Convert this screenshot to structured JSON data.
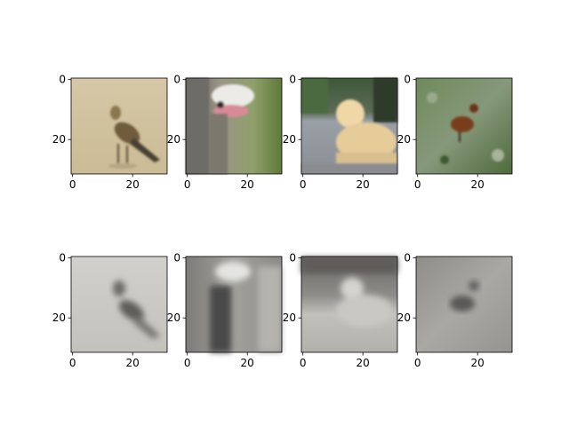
{
  "figure": {
    "background": "#ffffff",
    "axis_color": "#000000"
  },
  "chart_data": [
    {
      "type": "heatmap",
      "content": "image: bird on sandy background (color)",
      "colormap": "rgb",
      "xlim": [
        -0.5,
        31.5
      ],
      "ylim": [
        31.5,
        -0.5
      ],
      "xticks": [
        0,
        20
      ],
      "yticks": [
        0,
        20
      ],
      "dominant_colors": [
        "#d8c9a8",
        "#7a6a4a",
        "#3e3a2c"
      ]
    },
    {
      "type": "heatmap",
      "content": "image: ostrich head close-up (color)",
      "colormap": "rgb",
      "xlim": [
        -0.5,
        31.5
      ],
      "ylim": [
        31.5,
        -0.5
      ],
      "xticks": [
        0,
        20
      ],
      "yticks": [
        0,
        20
      ],
      "dominant_colors": [
        "#8e8a7c",
        "#e4e4e0",
        "#6f8a3e"
      ]
    },
    {
      "type": "heatmap",
      "content": "image: light-colored dog lying on pavement (color)",
      "colormap": "rgb",
      "xlim": [
        -0.5,
        31.5
      ],
      "ylim": [
        31.5,
        -0.5
      ],
      "xticks": [
        0,
        20
      ],
      "yticks": [
        0,
        20
      ],
      "dominant_colors": [
        "#3f5a3a",
        "#9da0a4",
        "#e8cf9e"
      ]
    },
    {
      "type": "heatmap",
      "content": "image: brown bird standing in grass (color)",
      "colormap": "rgb",
      "xlim": [
        -0.5,
        31.5
      ],
      "ylim": [
        31.5,
        -0.5
      ],
      "xticks": [
        0,
        20
      ],
      "yticks": [
        0,
        20
      ],
      "dominant_colors": [
        "#5f7a4e",
        "#7e4a26",
        "#9aa88a"
      ]
    },
    {
      "type": "heatmap",
      "content": "image: blurred grayscale reconstruction of the bird",
      "colormap": "gray",
      "xlim": [
        -0.5,
        31.5
      ],
      "ylim": [
        31.5,
        -0.5
      ],
      "xticks": [
        0,
        20
      ],
      "yticks": [
        0,
        20
      ],
      "dominant_colors": [
        "#cfcdc6",
        "#5e5d59"
      ]
    },
    {
      "type": "heatmap",
      "content": "image: blurred grayscale reconstruction of the ostrich",
      "colormap": "gray",
      "xlim": [
        -0.5,
        31.5
      ],
      "ylim": [
        31.5,
        -0.5
      ],
      "xticks": [
        0,
        20
      ],
      "yticks": [
        0,
        20
      ],
      "dominant_colors": [
        "#8e8d8a",
        "#e0e0de",
        "#3d3d3b"
      ]
    },
    {
      "type": "heatmap",
      "content": "image: blurred grayscale reconstruction of the dog",
      "colormap": "gray",
      "xlim": [
        -0.5,
        31.5
      ],
      "ylim": [
        31.5,
        -0.5
      ],
      "xticks": [
        0,
        20
      ],
      "yticks": [
        0,
        20
      ],
      "dominant_colors": [
        "#7a7876",
        "#b9b7b2",
        "#d9d7d2"
      ]
    },
    {
      "type": "heatmap",
      "content": "image: blurred grayscale reconstruction of the grass bird",
      "colormap": "gray",
      "xlim": [
        -0.5,
        31.5
      ],
      "ylim": [
        31.5,
        -0.5
      ],
      "xticks": [
        0,
        20
      ],
      "yticks": [
        0,
        20
      ],
      "dominant_colors": [
        "#a8a6a2",
        "#525150"
      ]
    }
  ]
}
